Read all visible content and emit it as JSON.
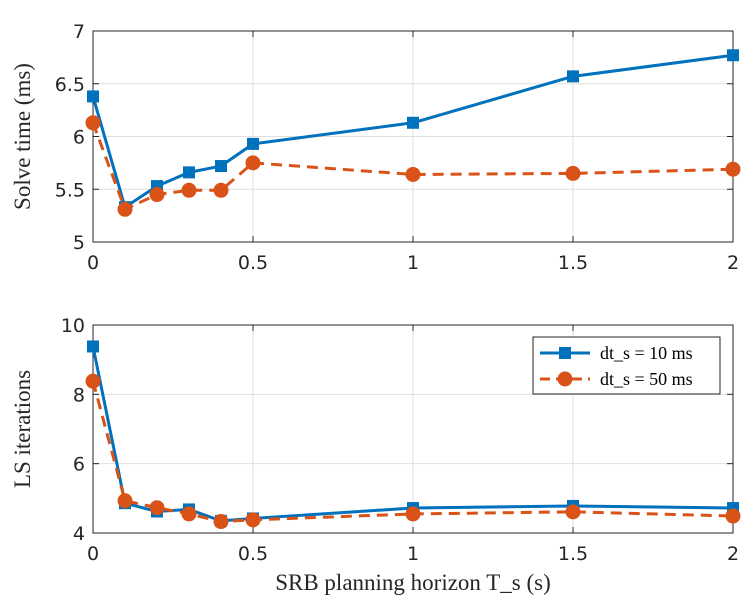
{
  "chart_data": [
    {
      "type": "line",
      "ylabel": "Solve time (ms)",
      "xlabel": "",
      "xlim": [
        0,
        2
      ],
      "ylim": [
        5,
        7
      ],
      "xticks": [
        0,
        0.5,
        1,
        1.5,
        2
      ],
      "xtick_labels": [
        "0",
        "0.5",
        "1",
        "1.5",
        "2"
      ],
      "yticks": [
        5,
        5.5,
        6,
        6.5,
        7
      ],
      "ytick_labels": [
        "5",
        "5.5",
        "6",
        "6.5",
        "7"
      ],
      "grid": true,
      "x": [
        0,
        0.1,
        0.2,
        0.3,
        0.4,
        0.5,
        1,
        1.5,
        2
      ],
      "series": [
        {
          "name": "dt_s = 10 ms",
          "color": "#0072bd",
          "marker": "square",
          "dash": "solid",
          "values": [
            6.38,
            5.33,
            5.53,
            5.66,
            5.72,
            5.93,
            6.13,
            6.57,
            6.77
          ]
        },
        {
          "name": "dt_s = 50 ms",
          "color": "#d95319",
          "marker": "circle",
          "dash": "dashed",
          "values": [
            6.13,
            5.31,
            5.45,
            5.49,
            5.49,
            5.75,
            5.64,
            5.65,
            5.69
          ]
        }
      ]
    },
    {
      "type": "line",
      "ylabel": "LS iterations",
      "xlabel": "SRB planning horizon T_s (s)",
      "xlim": [
        0,
        2
      ],
      "ylim": [
        4,
        10
      ],
      "xticks": [
        0,
        0.5,
        1,
        1.5,
        2
      ],
      "xtick_labels": [
        "0",
        "0.5",
        "1",
        "1.5",
        "2"
      ],
      "yticks": [
        4,
        6,
        8,
        10
      ],
      "ytick_labels": [
        "4",
        "6",
        "8",
        "10"
      ],
      "grid": true,
      "legend": {
        "position": "top-right",
        "entries": [
          "dt_s = 10 ms",
          "dt_s = 50 ms"
        ]
      },
      "x": [
        0,
        0.1,
        0.2,
        0.3,
        0.4,
        0.5,
        1,
        1.5,
        2
      ],
      "series": [
        {
          "name": "dt_s = 10 ms",
          "color": "#0072bd",
          "marker": "square",
          "dash": "solid",
          "values": [
            9.38,
            4.86,
            4.62,
            4.68,
            4.35,
            4.42,
            4.72,
            4.78,
            4.72
          ]
        },
        {
          "name": "dt_s = 50 ms",
          "color": "#d95319",
          "marker": "circle",
          "dash": "dashed",
          "values": [
            8.38,
            4.93,
            4.73,
            4.55,
            4.33,
            4.38,
            4.55,
            4.61,
            4.49
          ]
        }
      ]
    }
  ]
}
